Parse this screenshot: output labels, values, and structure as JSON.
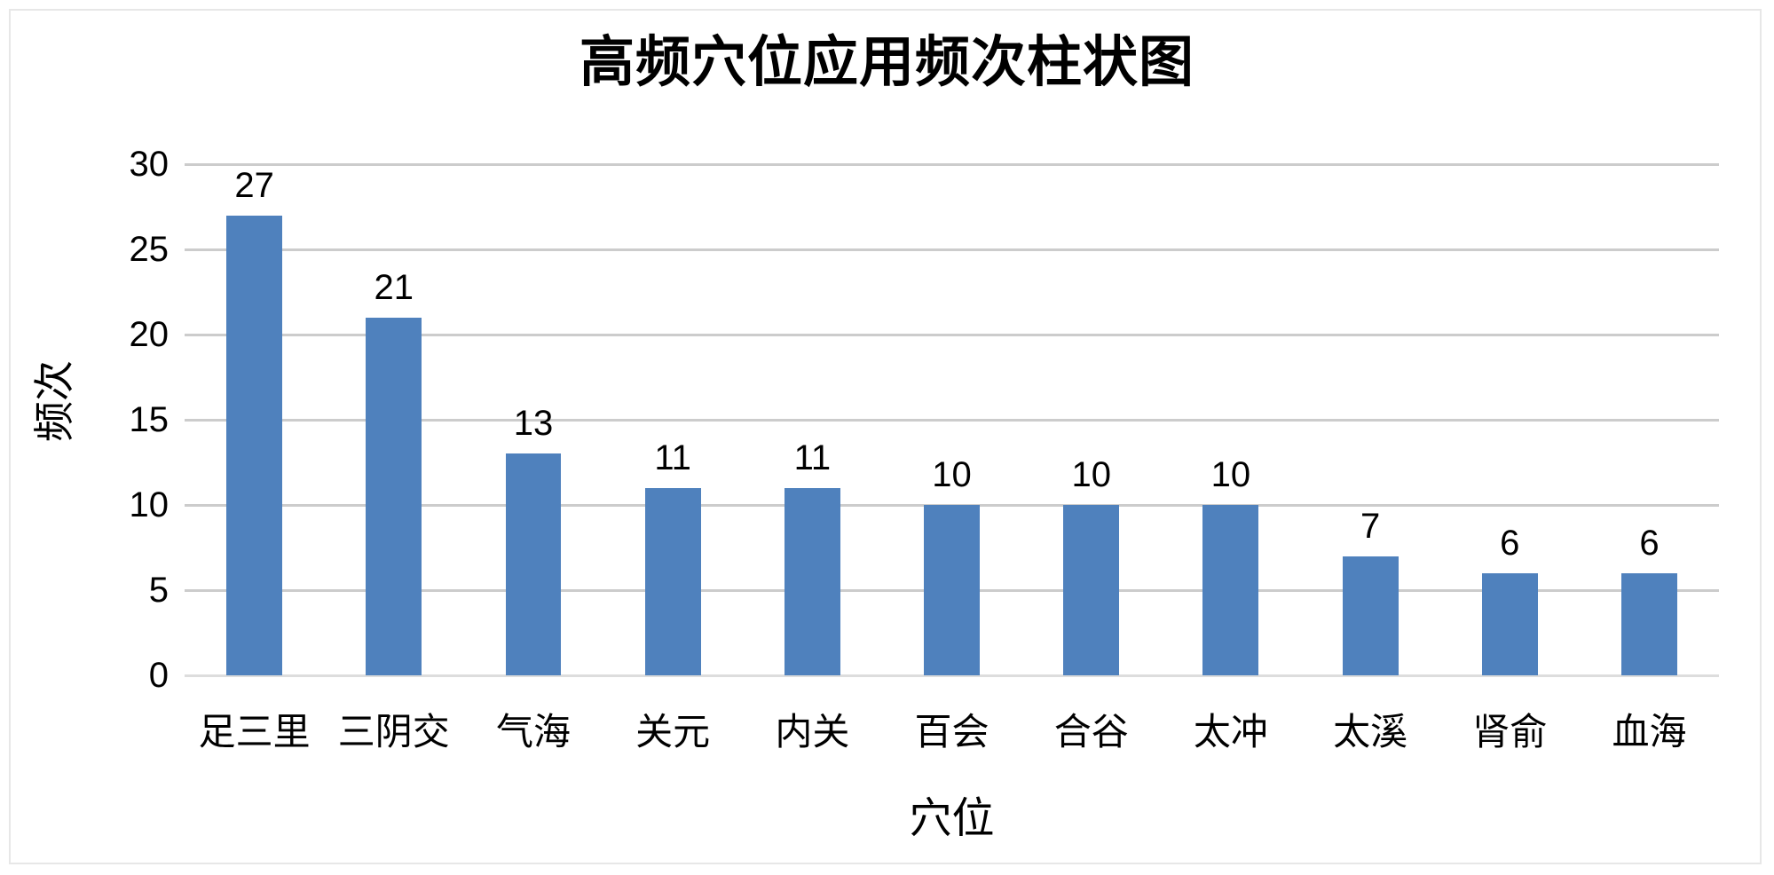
{
  "chart": {
    "colors": {
      "bar": "#4F81BD",
      "gridline": "#cccccc",
      "baseline": "#dddddd",
      "border": "#e7e7e7",
      "text": "#000000",
      "background": "#ffffff"
    }
  },
  "chart_data": {
    "type": "bar",
    "title": "高频穴位应用频次柱状图",
    "categories": [
      "足三里",
      "三阴交",
      "气海",
      "关元",
      "内关",
      "百会",
      "合谷",
      "太冲",
      "太溪",
      "肾俞",
      "血海"
    ],
    "values": [
      27,
      21,
      13,
      11,
      11,
      10,
      10,
      10,
      7,
      6,
      6
    ],
    "xlabel": "穴位",
    "ylabel": "频次",
    "ylim": [
      0,
      30
    ],
    "yticks": [
      0,
      5,
      10,
      15,
      20,
      25,
      30
    ],
    "grid": "horizontal",
    "legend": "none",
    "data_labels": true
  }
}
